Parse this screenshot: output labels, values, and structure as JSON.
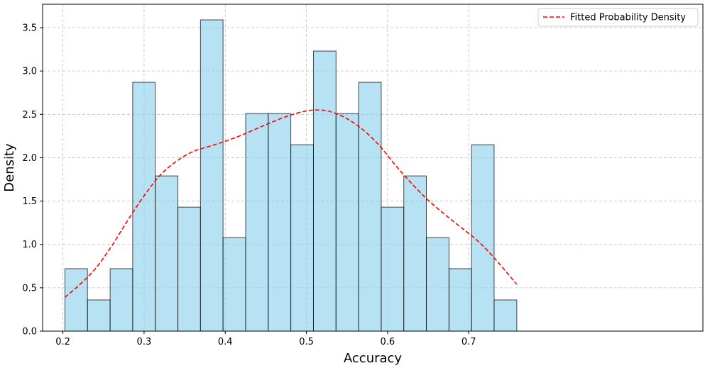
{
  "chart_data": {
    "type": "bar",
    "title": "",
    "xlabel": "Accuracy",
    "ylabel": "Density",
    "xlim": [
      0.175,
      0.9885
    ],
    "ylim": [
      0,
      3.77
    ],
    "xticks": [
      0.2,
      0.3,
      0.4,
      0.5,
      0.6,
      0.7
    ],
    "xtick_labels": [
      "0.2",
      "0.3",
      "0.4",
      "0.5",
      "0.6",
      "0.7"
    ],
    "yticks": [
      0,
      0.5,
      1.0,
      1.5,
      2.0,
      2.5,
      3.0,
      3.5
    ],
    "ytick_labels": [
      "0.0",
      "0.5",
      "1.0",
      "1.5",
      "2.0",
      "2.5",
      "3.0",
      "3.5"
    ],
    "grid": true,
    "legend_position": "top-right",
    "colors": {
      "bar_fill": "#87ceeb",
      "bar_edge": "#000000",
      "curve": "#ff0000",
      "grid": "#c0c0c0"
    },
    "histogram": {
      "bin_edges": [
        0.2025,
        0.2303,
        0.2582,
        0.286,
        0.3138,
        0.3417,
        0.3695,
        0.3973,
        0.4252,
        0.453,
        0.4808,
        0.5087,
        0.5365,
        0.5643,
        0.5922,
        0.62,
        0.6478,
        0.6757,
        0.7035,
        0.7313,
        0.7592
      ],
      "densities": [
        0.72,
        0.36,
        0.72,
        2.87,
        1.79,
        1.43,
        3.59,
        1.08,
        2.51,
        2.51,
        2.15,
        3.23,
        2.51,
        2.87,
        1.43,
        1.79,
        1.08,
        0.72,
        2.15,
        0.36
      ]
    },
    "series": [
      {
        "name": "Fitted Probability Density",
        "style": "dashed",
        "x": [
          0.2025,
          0.22,
          0.24,
          0.26,
          0.28,
          0.3,
          0.32,
          0.34,
          0.36,
          0.38,
          0.4,
          0.42,
          0.44,
          0.46,
          0.48,
          0.5,
          0.515,
          0.53,
          0.55,
          0.57,
          0.59,
          0.61,
          0.63,
          0.65,
          0.67,
          0.69,
          0.71,
          0.73,
          0.7592
        ],
        "y": [
          0.39,
          0.53,
          0.72,
          0.98,
          1.28,
          1.56,
          1.8,
          1.96,
          2.07,
          2.13,
          2.19,
          2.26,
          2.34,
          2.42,
          2.49,
          2.54,
          2.55,
          2.53,
          2.45,
          2.32,
          2.14,
          1.91,
          1.7,
          1.51,
          1.35,
          1.2,
          1.05,
          0.86,
          0.54
        ]
      }
    ]
  }
}
